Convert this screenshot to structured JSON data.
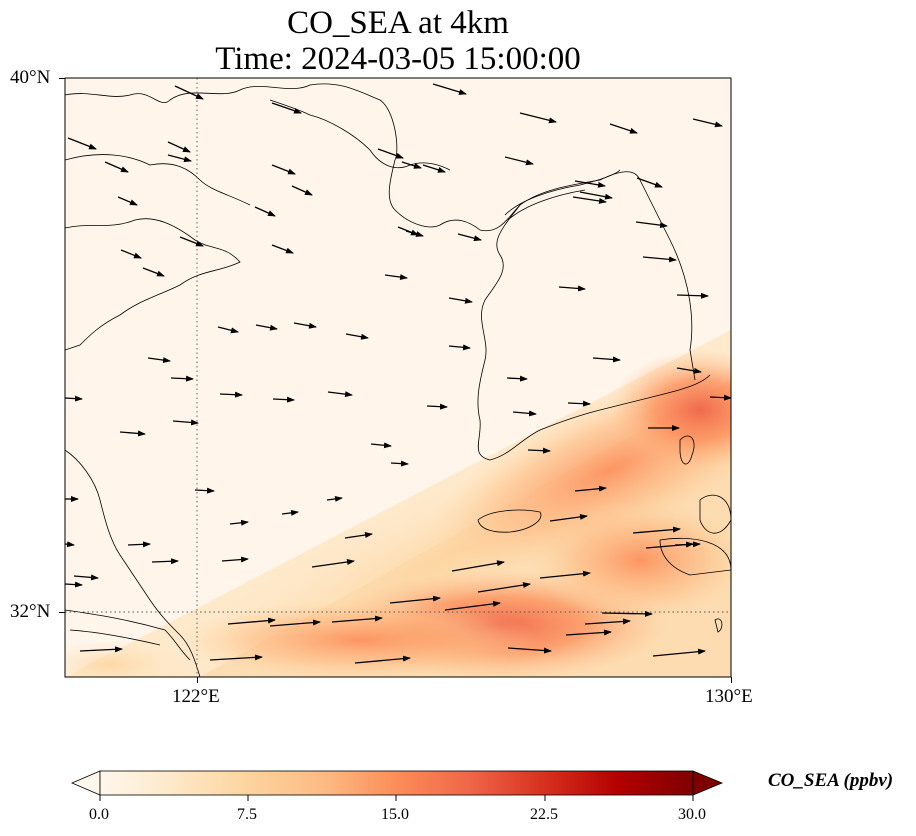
{
  "title": {
    "line1": "CO_SEA at 4km",
    "line2": "Time: 2024-03-05 15:00:00"
  },
  "map": {
    "lat_labels": [
      "40°N",
      "32°N"
    ],
    "lon_labels": [
      "122°E",
      "130°E"
    ],
    "lat_range": [
      31,
      40
    ],
    "lon_range": [
      120,
      130
    ],
    "gridlines": {
      "lat": [
        32
      ],
      "lon": [
        122
      ],
      "style": "dotted"
    },
    "field": "CO_SEA",
    "high_concentration_region": "southeast (south of the Korean peninsula, Jeju Strait, East China Sea)",
    "wind_vectors": "westerly / west-northwesterly arrows across domain"
  },
  "colorbar": {
    "label": "CO_SEA (ppbv)",
    "ticks": [
      "0.0",
      "7.5",
      "15.0",
      "22.5",
      "30.0"
    ],
    "range": [
      0,
      30
    ],
    "extend": "both",
    "colormap": "OrRd",
    "colors": [
      "#fff7ec",
      "#fee8c8",
      "#fdd49e",
      "#fdbb84",
      "#fc8d59",
      "#ef6548",
      "#d7301f",
      "#b30000",
      "#7f0000"
    ]
  }
}
